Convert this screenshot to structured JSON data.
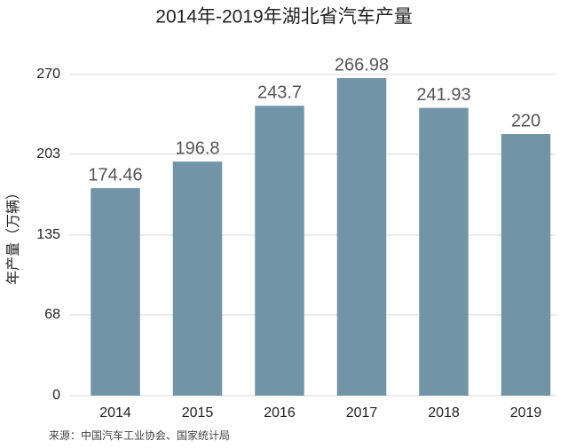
{
  "chart_data": {
    "type": "bar",
    "title": "2014年-2019年湖北省汽车产量",
    "y_label": "年产量（万辆）",
    "source": "来源：中国汽车工业协会、国家统计局",
    "categories": [
      "2014",
      "2015",
      "2016",
      "2017",
      "2018",
      "2019"
    ],
    "values": [
      174.46,
      196.8,
      243.7,
      266.98,
      241.93,
      220
    ],
    "color": "#7393a7",
    "ylim": [
      0,
      270
    ],
    "yticks": [
      0,
      68,
      135,
      203,
      270
    ],
    "grid": true
  }
}
